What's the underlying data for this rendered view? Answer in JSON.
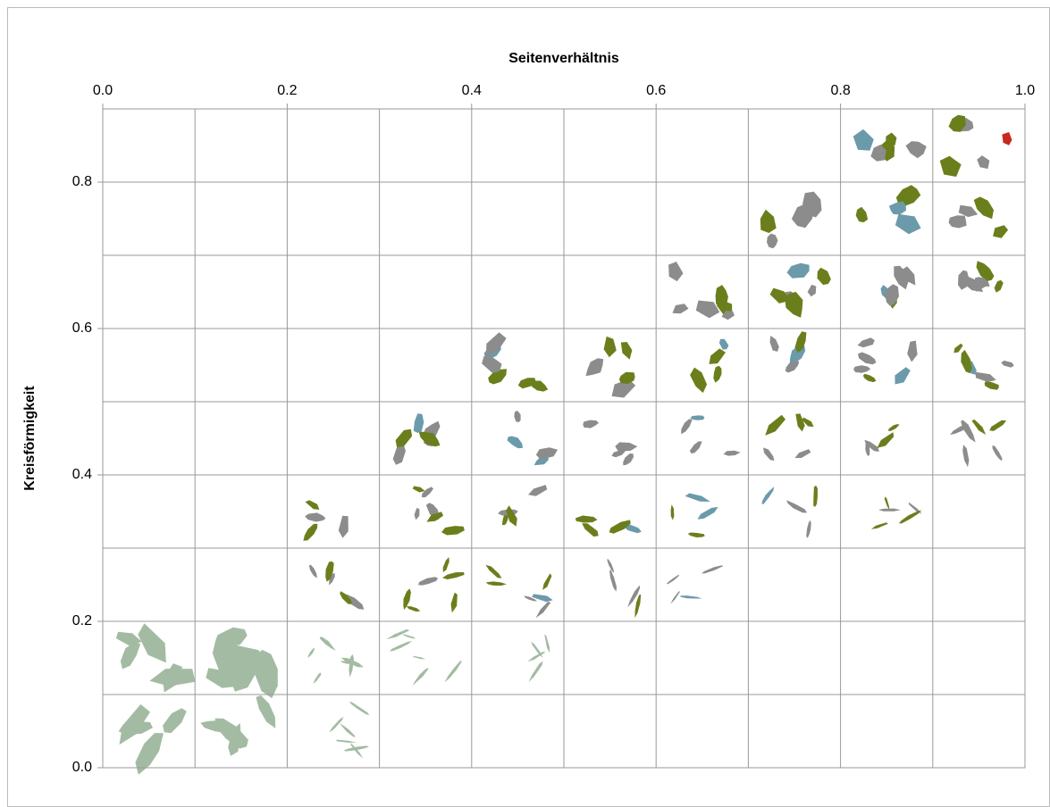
{
  "chart_data": {
    "type": "shape-grid",
    "x_label": "Seitenverhältnis",
    "y_label": "Kreisförmigkeit",
    "xlim": [
      0,
      1
    ],
    "ylim": [
      0,
      0.9
    ],
    "xticks": [
      {
        "value": 0,
        "label": "0.0"
      },
      0.2,
      0.4,
      0.6,
      0.8,
      {
        "value": 1,
        "label": "1.0"
      }
    ],
    "yticks": [
      {
        "value": 0,
        "label": "0.0"
      },
      0.2,
      0.4,
      0.6,
      0.8
    ],
    "xminor": [
      0.1,
      0.3,
      0.5,
      0.7,
      0.9
    ],
    "yminor": [
      0.1,
      0.3,
      0.5,
      0.7
    ],
    "grid": true
  }
}
